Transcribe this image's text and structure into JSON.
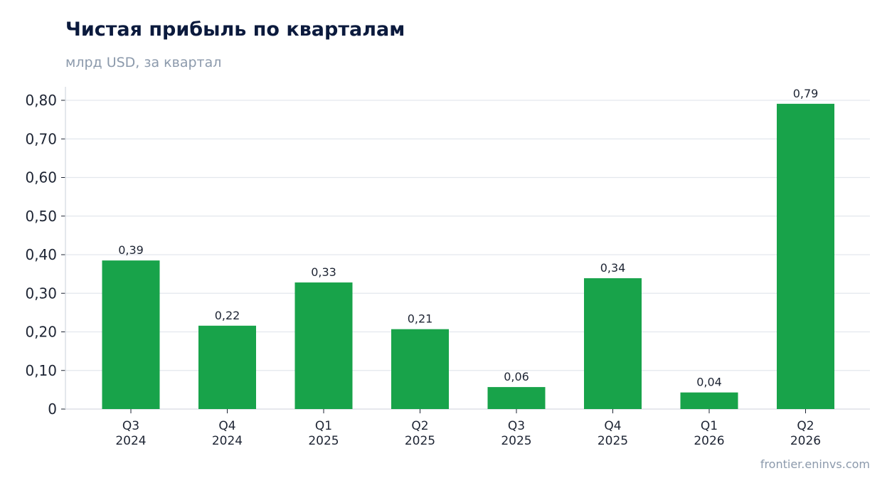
{
  "header": {
    "title": "Чистая прибыль по кварталам",
    "subtitle": "млрд USD, за квартал"
  },
  "footer": {
    "source": "frontier.eninvs.com"
  },
  "chart_data": {
    "type": "bar",
    "title": "Чистая прибыль по кварталам",
    "subtitle": "млрд USD, за квартал",
    "xlabel": "",
    "ylabel": "",
    "ylim": [
      0,
      0.8
    ],
    "grid": true,
    "bar_color": "#18a34a",
    "categories": [
      [
        "Q3",
        "2024"
      ],
      [
        "Q4",
        "2024"
      ],
      [
        "Q1",
        "2025"
      ],
      [
        "Q2",
        "2025"
      ],
      [
        "Q3",
        "2025"
      ],
      [
        "Q4",
        "2025"
      ],
      [
        "Q1",
        "2026"
      ],
      [
        "Q2",
        "2026"
      ]
    ],
    "values": [
      0.385,
      0.216,
      0.328,
      0.207,
      0.057,
      0.339,
      0.043,
      0.791
    ],
    "data_labels": [
      "0,39",
      "0,22",
      "0,33",
      "0,21",
      "0,06",
      "0,34",
      "0,04",
      "0,79"
    ],
    "y_ticks": [
      {
        "value": 0,
        "label": "0"
      },
      {
        "value": 0.1,
        "label": "0,10"
      },
      {
        "value": 0.2,
        "label": "0,20"
      },
      {
        "value": 0.3,
        "label": "0,30"
      },
      {
        "value": 0.4,
        "label": "0,40"
      },
      {
        "value": 0.5,
        "label": "0,50"
      },
      {
        "value": 0.6,
        "label": "0,60"
      },
      {
        "value": 0.7,
        "label": "0,70"
      },
      {
        "value": 0.8,
        "label": "0,80"
      }
    ]
  }
}
